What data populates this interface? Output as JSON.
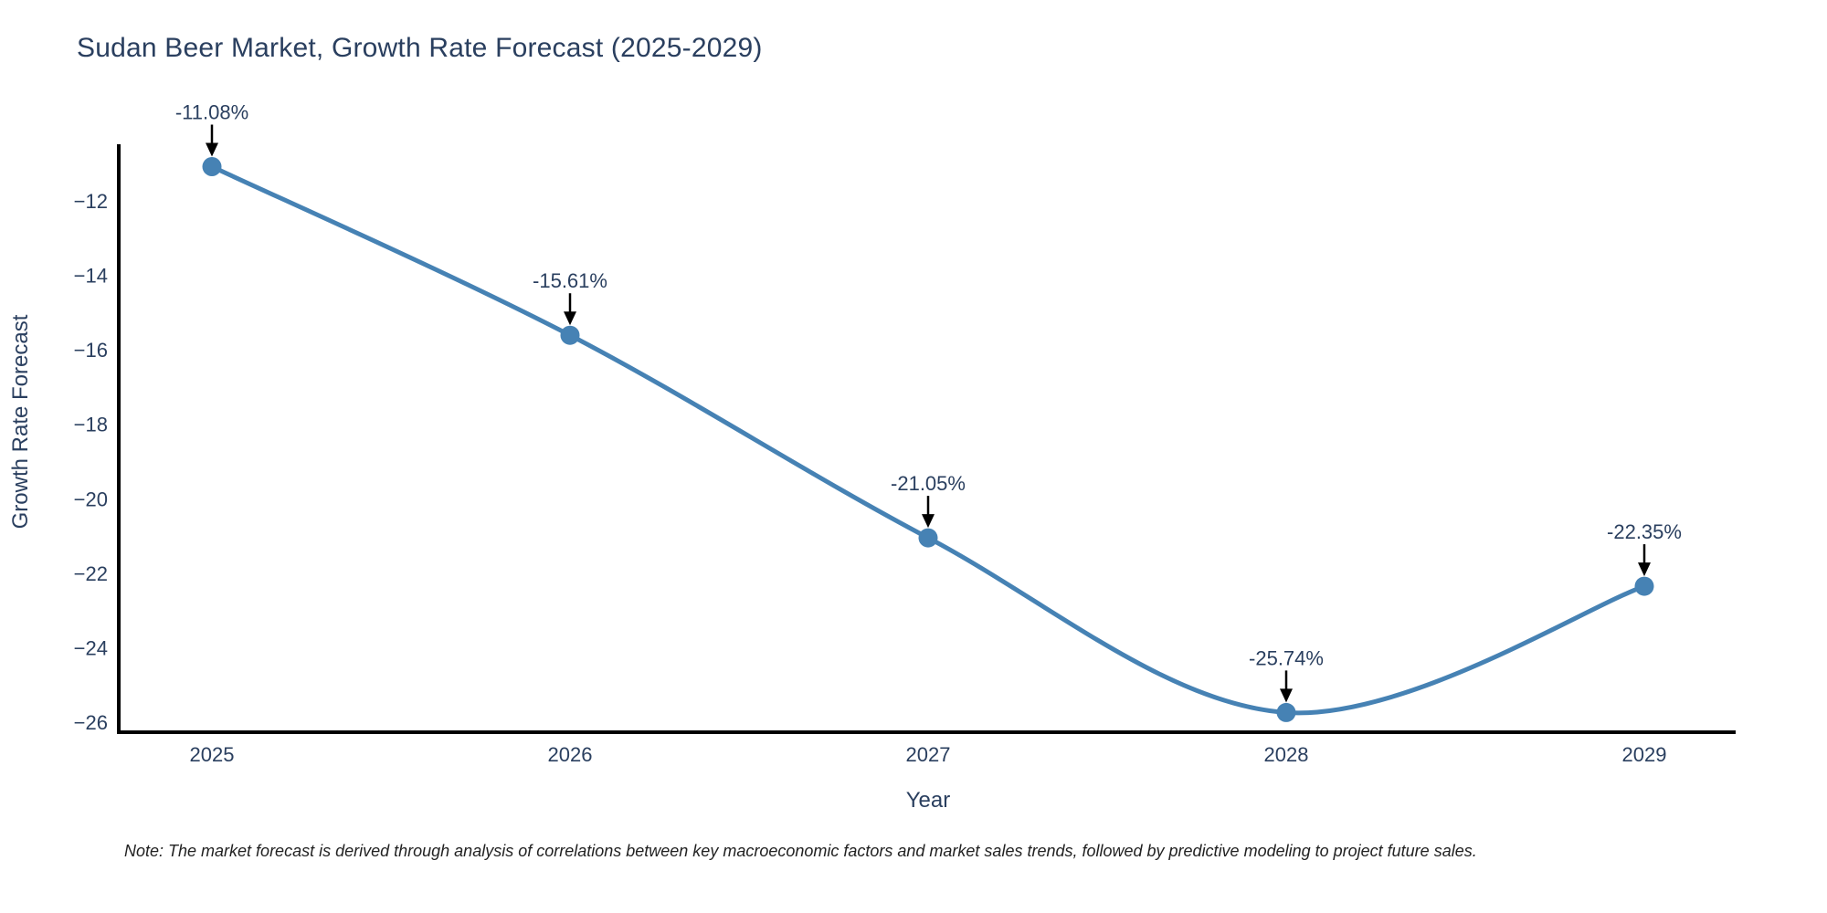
{
  "page": {
    "title": "Sudan Beer Market, Growth Rate Forecast (2025-2029)",
    "note": "Note: The market forecast is derived through analysis of correlations between key macroeconomic factors and market sales trends, followed by predictive modeling to project future sales."
  },
  "colors": {
    "background": "#ffffff",
    "line": "#4682b4",
    "marker": "#4682b4",
    "axis_line": "#000000",
    "arrow": "#000000",
    "text": "#2a3f5f",
    "note_text": "#222222"
  },
  "chart_data": {
    "type": "line",
    "title": "Sudan Beer Market, Growth Rate Forecast (2025-2029)",
    "xlabel": "Year",
    "ylabel": "Growth Rate Forecast",
    "x": [
      2025,
      2026,
      2027,
      2028,
      2029
    ],
    "series": [
      {
        "name": "Growth Rate Forecast",
        "values": [
          -11.08,
          -15.61,
          -21.05,
          -25.74,
          -22.35
        ]
      }
    ],
    "point_labels": [
      "-11.08%",
      "-15.61%",
      "-21.05%",
      "-25.74%",
      "-22.35%"
    ],
    "x_tick_labels": [
      "2025",
      "2026",
      "2027",
      "2028",
      "2029"
    ],
    "y_ticks": [
      {
        "value": -12,
        "label": "−12"
      },
      {
        "value": -14,
        "label": "−14"
      },
      {
        "value": -16,
        "label": "−16"
      },
      {
        "value": -18,
        "label": "−18"
      },
      {
        "value": -20,
        "label": "−20"
      },
      {
        "value": -22,
        "label": "−22"
      },
      {
        "value": -24,
        "label": "−24"
      },
      {
        "value": -26,
        "label": "−26"
      }
    ],
    "ylim": [
      -26.3,
      -10.5
    ],
    "grid": false,
    "legend": "none",
    "line_shape": "spline",
    "marker": "circle",
    "annotations": "value labels with down arrows above each point"
  }
}
